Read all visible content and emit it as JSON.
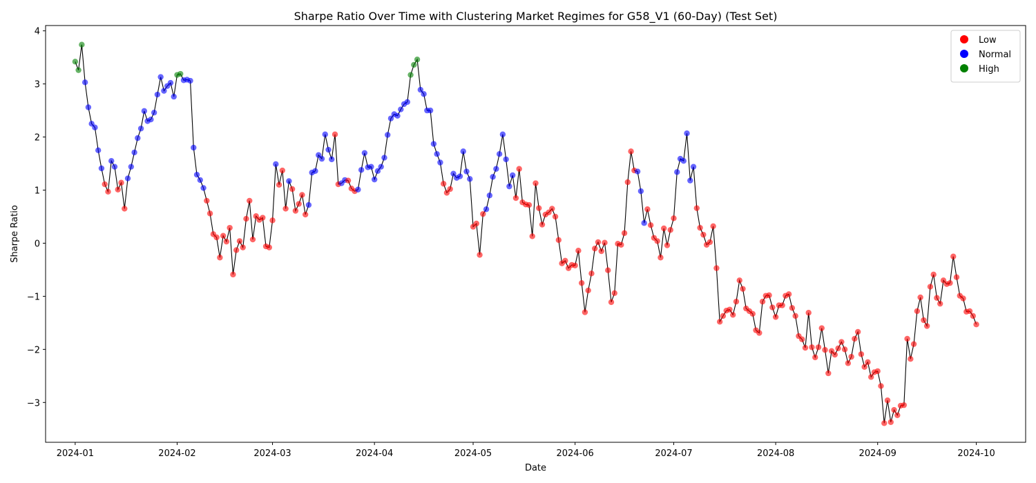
{
  "chart_data": {
    "type": "scatter",
    "title": "Sharpe Ratio Over Time with Clustering Market Regimes for G58_V1 (60-Day) (Test Set)",
    "xlabel": "Date",
    "ylabel": "Sharpe Ratio",
    "xlim": [
      "2023-12-23",
      "2024-10-16"
    ],
    "ylim": [
      -3.75,
      4.1
    ],
    "x_ticks": [
      "2024-01-01",
      "2024-02-01",
      "2024-03-01",
      "2024-04-01",
      "2024-05-01",
      "2024-06-01",
      "2024-07-01",
      "2024-08-01",
      "2024-09-01",
      "2024-10-01"
    ],
    "x_tick_labels": [
      "2024-01",
      "2024-02",
      "2024-03",
      "2024-04",
      "2024-05",
      "2024-06",
      "2024-07",
      "2024-08",
      "2024-09",
      "2024-10"
    ],
    "y_ticks": [
      -3,
      -2,
      -1,
      0,
      1,
      2,
      3,
      4
    ],
    "y_tick_labels": [
      "−3",
      "−2",
      "−1",
      "0",
      "1",
      "2",
      "3",
      "4"
    ],
    "grid": false,
    "legend_position": "top-right",
    "legend": [
      {
        "label": "Low",
        "color": "#ff0000"
      },
      {
        "label": "Normal",
        "color": "#0000ff"
      },
      {
        "label": "High",
        "color": "#008000"
      }
    ],
    "line_color": "#000000",
    "regime_colors": {
      "L": "#ff0000",
      "N": "#0000ff",
      "H": "#008000"
    },
    "start_date": "2024-01-01",
    "interval_days": 1,
    "values": [
      3.42,
      3.26,
      3.74,
      3.03,
      2.56,
      2.25,
      2.18,
      1.75,
      1.41,
      1.11,
      0.97,
      1.55,
      1.44,
      1.01,
      1.14,
      0.65,
      1.22,
      1.44,
      1.71,
      1.98,
      2.16,
      2.49,
      2.3,
      2.33,
      2.46,
      2.8,
      3.13,
      2.87,
      2.96,
      3.02,
      2.76,
      3.17,
      3.19,
      3.07,
      3.08,
      3.06,
      1.8,
      1.29,
      1.19,
      1.04,
      0.8,
      0.56,
      0.17,
      0.11,
      -0.27,
      0.14,
      0.03,
      0.29,
      -0.59,
      -0.13,
      0.04,
      -0.08,
      0.46,
      0.8,
      0.07,
      0.51,
      0.44,
      0.48,
      -0.06,
      -0.08,
      0.43,
      1.49,
      1.1,
      1.37,
      0.65,
      1.17,
      1.02,
      0.61,
      0.74,
      0.91,
      0.54,
      0.72,
      1.33,
      1.36,
      1.66,
      1.59,
      2.05,
      1.76,
      1.58,
      2.05,
      1.11,
      1.13,
      1.19,
      1.18,
      1.03,
      0.98,
      1.01,
      1.38,
      1.7,
      1.43,
      1.44,
      1.2,
      1.36,
      1.44,
      1.61,
      2.04,
      2.35,
      2.43,
      2.4,
      2.52,
      2.62,
      2.66,
      3.17,
      3.36,
      3.46,
      2.89,
      2.81,
      2.5,
      2.5,
      1.87,
      1.68,
      1.52,
      1.12,
      0.95,
      1.02,
      1.31,
      1.23,
      1.26,
      1.73,
      1.35,
      1.21,
      0.31,
      0.37,
      -0.22,
      0.55,
      0.64,
      0.9,
      1.25,
      1.4,
      1.68,
      2.05,
      1.58,
      1.07,
      1.28,
      0.85,
      1.4,
      0.77,
      0.73,
      0.72,
      0.13,
      1.13,
      0.66,
      0.35,
      0.54,
      0.58,
      0.65,
      0.5,
      0.06,
      -0.38,
      -0.33,
      -0.47,
      -0.41,
      -0.42,
      -0.14,
      -0.75,
      -1.3,
      -0.89,
      -0.57,
      -0.1,
      0.02,
      -0.15,
      0.01,
      -0.51,
      -1.11,
      -0.94,
      -0.01,
      -0.03,
      0.19,
      1.15,
      1.73,
      1.37,
      1.35,
      0.98,
      0.38,
      0.64,
      0.34,
      0.1,
      0.04,
      -0.27,
      0.28,
      -0.04,
      0.25,
      0.47,
      1.34,
      1.59,
      1.55,
      2.07,
      1.18,
      1.44,
      0.66,
      0.29,
      0.16,
      -0.03,
      0.02,
      0.32,
      -0.47,
      -1.48,
      -1.37,
      -1.27,
      -1.25,
      -1.35,
      -1.1,
      -0.7,
      -0.86,
      -1.23,
      -1.28,
      -1.33,
      -1.64,
      -1.69,
      -1.1,
      -0.99,
      -0.98,
      -1.21,
      -1.39,
      -1.17,
      -1.17,
      -0.99,
      -0.96,
      -1.22,
      -1.37,
      -1.75,
      -1.81,
      -1.97,
      -1.31,
      -1.96,
      -2.15,
      -1.96,
      -1.6,
      -2.01,
      -2.45,
      -2.03,
      -2.1,
      -1.98,
      -1.86,
      -2.0,
      -2.26,
      -2.14,
      -1.8,
      -1.67,
      -2.09,
      -2.33,
      -2.24,
      -2.52,
      -2.43,
      -2.41,
      -2.69,
      -3.39,
      -2.96,
      -3.37,
      -3.14,
      -3.24,
      -3.06,
      -3.05,
      -1.8,
      -2.18,
      -1.9,
      -1.28,
      -1.02,
      -1.45,
      -1.56,
      -0.82,
      -0.59,
      -1.03,
      -1.14,
      -0.7,
      -0.77,
      -0.75,
      -0.25,
      -0.64,
      -0.99,
      -1.04,
      -1.29,
      -1.28,
      -1.37,
      -1.53
    ],
    "regimes": "HHHNNNNNNLLNNLLLNNNNNNNNNNNNNNNHHNNNNNNNLLLLLLLLLLLLLLLLLLLLLNLLLNLLLLLNNNNNNNNLLNNLLLNNNNNNNNNNNNNNNNHHHNNNNNNNLLLNNNNNNLLLLNNNNNNNNNLLLLLLLLLLLLLLLLLLLLLLLLLLLLLLLLLLLLLNNNLLLLLLLLLNNNNNNLLLLLLLLLLLLLLLLLLLLLLLLLLLLLLLLLLLLLLLLLLLLLLLLLLLLLLLLLLLLLLLLLLLLLLLLLLLLLLLLLLLLLLLLLL"
  }
}
